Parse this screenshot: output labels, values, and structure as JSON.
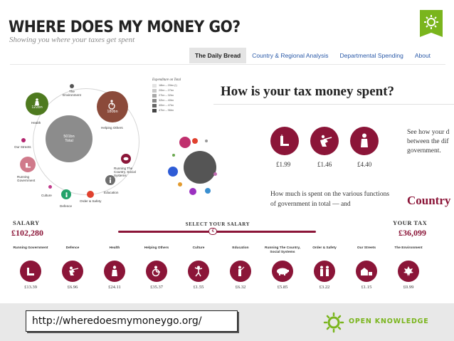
{
  "header": {
    "title": "WHERE DOES MY MONEY GO?",
    "subtitle": "Showing you where your taxes get spent",
    "logo_icon": "open-knowledge-leaf-icon"
  },
  "nav": {
    "tabs": [
      {
        "label": "The Daily Bread",
        "active": true
      },
      {
        "label": "Country & Regional Analysis",
        "active": false
      },
      {
        "label": "Departmental Spending",
        "active": false
      },
      {
        "label": "About",
        "active": false
      }
    ]
  },
  "bubbles": {
    "total": {
      "label": "501bn",
      "sub": "Total"
    },
    "items": [
      {
        "label": "Health",
        "value": "122bn",
        "color": "#4e7a1f"
      },
      {
        "label": "Helping Others",
        "value": "180bn",
        "color": "#8b4a3a"
      },
      {
        "label": "The Environment"
      },
      {
        "label": "Our Streets"
      },
      {
        "label": "Running Government"
      },
      {
        "label": "Culture"
      },
      {
        "label": "Defence"
      },
      {
        "label": "Order & Safety"
      },
      {
        "label": "Education"
      },
      {
        "label": "Running The Country, Social Systems"
      }
    ]
  },
  "legend": {
    "title": "Expenditure on Total",
    "items": [
      "18bn – 20bn (!)",
      "20bn – 27bn",
      "27bn – 32bn",
      "32bn – 40bn",
      "40bn – 47bn",
      "47bn – 96bn"
    ],
    "colors": [
      "#e2e2e2",
      "#c8c8c8",
      "#a8a8a8",
      "#888888",
      "#666666",
      "#444444"
    ]
  },
  "daily_bread": {
    "title": "How is your tax money spent?",
    "items": [
      {
        "value": "£1.99",
        "icon": "building-icon"
      },
      {
        "value": "£1.46",
        "icon": "soldier-icon"
      },
      {
        "value": "£4.40",
        "icon": "nurse-icon"
      }
    ],
    "description": "See how your d between the dif government.",
    "question": "How much is spent on the various functions of government in total — and",
    "country_heading": "Country"
  },
  "salary": {
    "label": "SALARY",
    "value": "£102,280",
    "select_label": "SELECT YOUR SALARY",
    "tax_label": "YOUR TAX",
    "tax_value": "£36,099",
    "thumb_symbol": "€",
    "slider_position": 0.48
  },
  "categories": [
    {
      "name": "Running Government",
      "amount": "£13.39",
      "icon": "building-icon"
    },
    {
      "name": "Defence",
      "amount": "£6.96",
      "icon": "soldier-icon"
    },
    {
      "name": "Health",
      "amount": "£24.11",
      "icon": "nurse-icon"
    },
    {
      "name": "Helping Others",
      "amount": "£35.37",
      "icon": "wheelchair-icon"
    },
    {
      "name": "Culture",
      "amount": "£1.55",
      "icon": "dancer-icon"
    },
    {
      "name": "Education",
      "amount": "£6.32",
      "icon": "teacher-icon"
    },
    {
      "name": "Running The Country, Social Systems",
      "amount": "£5.85",
      "icon": "pig-icon"
    },
    {
      "name": "Order & Safety",
      "amount": "£3.22",
      "icon": "police-icon"
    },
    {
      "name": "Our Streets",
      "amount": "£1.15",
      "icon": "street-icon"
    },
    {
      "name": "The Environment",
      "amount": "£0.99",
      "icon": "leaf-icon"
    }
  ],
  "footer": {
    "url": "http://wheredoesmymoneygo.org/",
    "org": "OPEN KNOWLEDGE"
  },
  "colors": {
    "accent": "#8b1538",
    "brand_green": "#7ab51d",
    "link": "#2b5aa8"
  }
}
